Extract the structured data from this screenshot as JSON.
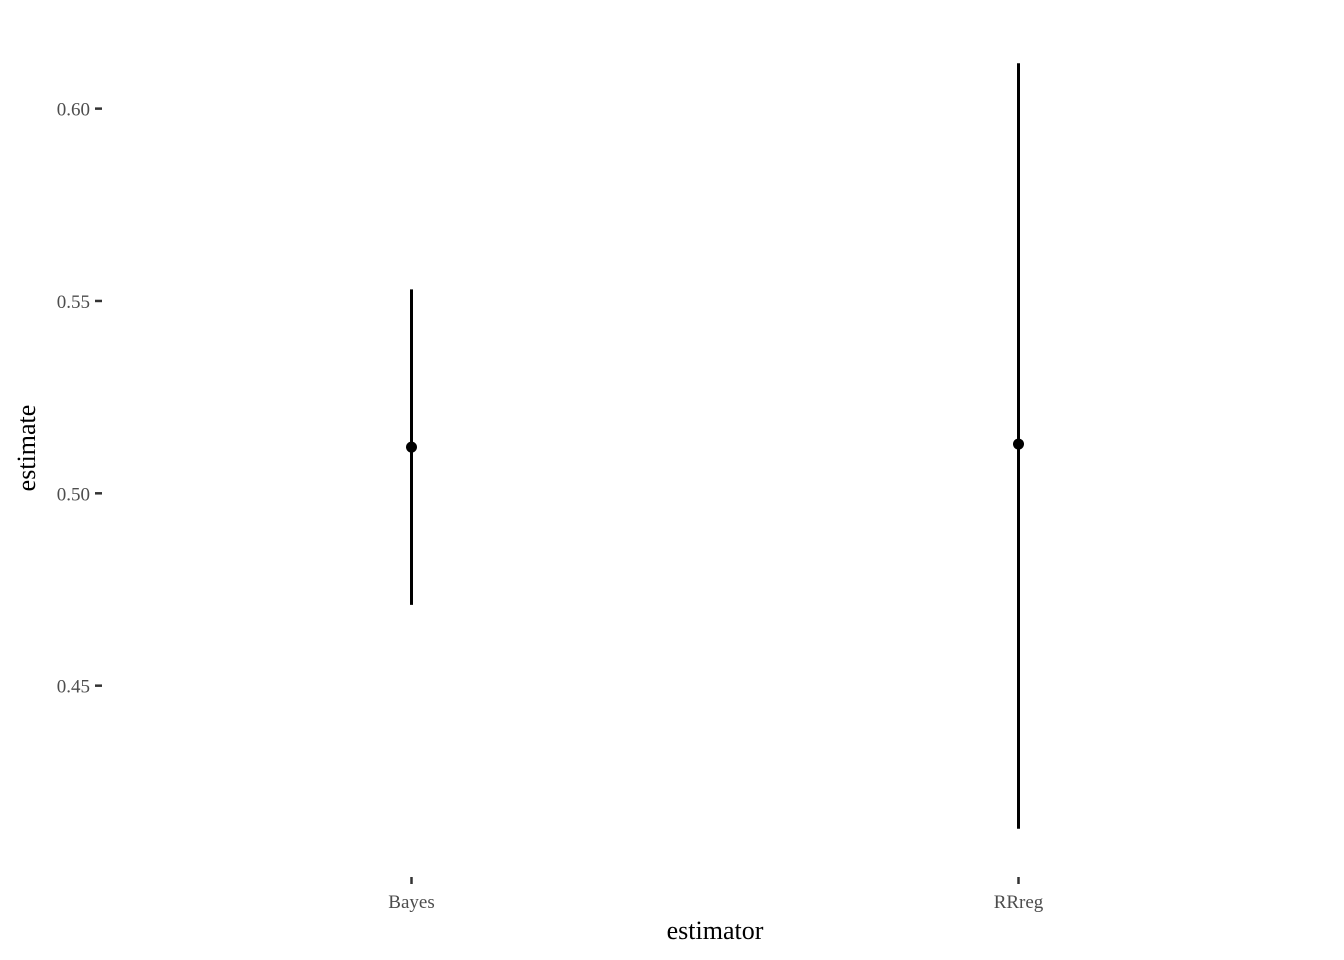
{
  "chart_data": {
    "type": "pointrange",
    "xlabel": "estimator",
    "ylabel": "estimate",
    "categories": [
      "Bayes",
      "RRreg"
    ],
    "points": [
      {
        "category": "Bayes",
        "estimate": 0.512,
        "lower": 0.471,
        "upper": 0.553
      },
      {
        "category": "RRreg",
        "estimate": 0.5128,
        "lower": 0.4128,
        "upper": 0.6118
      }
    ],
    "y_ticks": [
      {
        "value": 0.45,
        "label": "0.45"
      },
      {
        "value": 0.5,
        "label": "0.50"
      },
      {
        "value": 0.55,
        "label": "0.55"
      },
      {
        "value": 0.6,
        "label": "0.60"
      }
    ],
    "ylim": [
      0.4078,
      0.6168
    ],
    "grid": false,
    "legend": "none",
    "colors": {
      "mark": "#000000",
      "tick_text": "#4d4d4d"
    }
  }
}
